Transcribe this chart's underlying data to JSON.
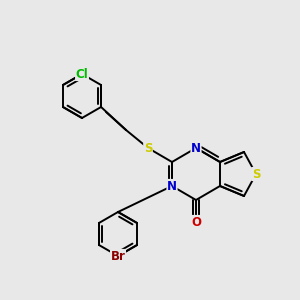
{
  "background_color": "#e8e8e8",
  "bond_color": "#000000",
  "atom_colors": {
    "S": "#cccc00",
    "N": "#0000cc",
    "O": "#cc0000",
    "Cl": "#00bb00",
    "Br": "#8b0000",
    "C": "#000000"
  },
  "font_size": 8.5,
  "line_width": 1.4
}
